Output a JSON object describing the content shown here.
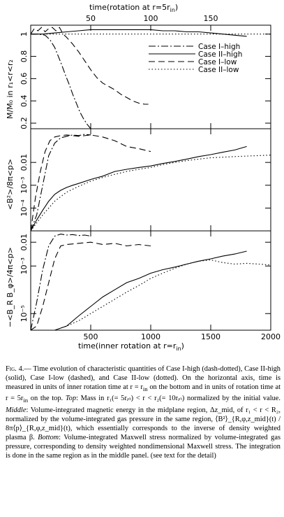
{
  "figure": {
    "top_axis_label": "time(rotation at r=5r",
    "top_axis_label_sub": "in",
    "top_axis_label_end": ")",
    "bottom_axis_label": "time(inner rotation at r=r",
    "bottom_axis_label_sub": "in",
    "bottom_axis_label_end": ")",
    "panel1_ylabel": "M/M₀ in r₁<r<r₂",
    "panel2_ylabel": "<B²>/8π<p>",
    "panel3_ylabel": "−<B_R B_φ>/4π<p>",
    "legend": [
      {
        "label": "Case I–high",
        "dash": "10,3,2,3"
      },
      {
        "label": "Case II–high",
        "dash": ""
      },
      {
        "label": "Case I–low",
        "dash": "9,5"
      },
      {
        "label": "Case II–low",
        "dash": "1.5,3"
      }
    ]
  },
  "chart_data": [
    {
      "type": "line",
      "panel": "top",
      "xlabel": "time(rotation at r=5r_in)",
      "ylabel": "M/M_0 in r_1<r<r_2",
      "xlim": [
        0,
        2000
      ],
      "ylim": [
        0.15,
        1.08
      ],
      "x_ticks": [
        500,
        1000,
        1500
      ],
      "top_ticks": [
        50,
        100,
        150
      ],
      "y_ticks": [
        0.2,
        0.4,
        0.6,
        0.8,
        1
      ],
      "y_tick_labels": [
        "0.2",
        "0.4",
        "0.6",
        "0.8",
        "1"
      ],
      "series": [
        {
          "name": "Case I-high",
          "x": [
            0,
            60,
            120,
            160,
            200,
            230,
            260,
            290,
            320,
            350,
            380,
            410,
            440,
            470,
            500
          ],
          "y": [
            1.0,
            1.0,
            0.99,
            0.95,
            0.88,
            0.8,
            0.72,
            0.63,
            0.55,
            0.46,
            0.38,
            0.3,
            0.24,
            0.19,
            0.15
          ]
        },
        {
          "name": "Case II-high",
          "x": [
            0,
            100,
            200,
            300,
            400,
            500,
            600,
            700,
            800,
            900,
            1000,
            1100,
            1200,
            1300,
            1400,
            1500,
            1600,
            1700,
            1800
          ],
          "y": [
            1.0,
            1.0,
            1.01,
            1.02,
            1.03,
            1.04,
            1.04,
            1.04,
            1.04,
            1.04,
            1.04,
            1.03,
            1.03,
            1.02,
            1.02,
            1.01,
            1.0,
            0.99,
            0.98
          ]
        },
        {
          "name": "Case I-low",
          "x": [
            0,
            30,
            60,
            90,
            120,
            150,
            180,
            210,
            240,
            270,
            300,
            350,
            400,
            450,
            500,
            550,
            600,
            650,
            700,
            750,
            800,
            850,
            900,
            950,
            980
          ],
          "y": [
            1.0,
            1.05,
            1.03,
            1.06,
            1.02,
            1.05,
            1.06,
            1.03,
            1.06,
            1.0,
            0.97,
            0.91,
            0.84,
            0.76,
            0.68,
            0.61,
            0.56,
            0.53,
            0.5,
            0.46,
            0.43,
            0.4,
            0.38,
            0.37,
            0.37
          ]
        },
        {
          "name": "Case II-low",
          "x": [
            0,
            200,
            400,
            600,
            800,
            1000,
            1200,
            1400,
            1600,
            1800,
            2000
          ],
          "y": [
            1.0,
            1.0,
            1.0,
            1.0,
            1.0,
            1.0,
            1.0,
            1.0,
            1.0,
            1.0,
            1.0
          ]
        }
      ]
    },
    {
      "type": "line",
      "panel": "middle",
      "ylabel": "<B^2>/8π<p>",
      "yscale": "log",
      "xlim": [
        0,
        2000
      ],
      "ylim": [
        1e-05,
        0.3
      ],
      "y_ticks": [
        0.0001,
        0.001,
        0.01
      ],
      "y_tick_labels": [
        "10⁻⁴",
        "10⁻³",
        "0.01"
      ],
      "series": [
        {
          "name": "Case I-high",
          "x": [
            0,
            50,
            100,
            150,
            200,
            250,
            300,
            350,
            400,
            450,
            500
          ],
          "y": [
            1e-05,
            5e-05,
            0.001,
            0.02,
            0.07,
            0.12,
            0.14,
            0.16,
            0.15,
            0.17,
            0.16
          ]
        },
        {
          "name": "Case II-high",
          "x": [
            0,
            50,
            100,
            150,
            200,
            250,
            300,
            350,
            400,
            500,
            600,
            700,
            800,
            900,
            1000,
            1100,
            1200,
            1300,
            1400,
            1500,
            1600,
            1700,
            1800
          ],
          "y": [
            1e-05,
            3e-05,
            8e-05,
            0.0002,
            0.0004,
            0.0006,
            0.0008,
            0.001,
            0.0012,
            0.0018,
            0.0025,
            0.004,
            0.005,
            0.006,
            0.007,
            0.009,
            0.011,
            0.014,
            0.018,
            0.022,
            0.028,
            0.035,
            0.05
          ]
        },
        {
          "name": "Case I-low",
          "x": [
            0,
            40,
            80,
            120,
            160,
            200,
            250,
            300,
            400,
            500,
            600,
            700,
            800,
            900,
            1000
          ],
          "y": [
            1e-05,
            0.0003,
            0.004,
            0.03,
            0.09,
            0.13,
            0.15,
            0.16,
            0.14,
            0.16,
            0.13,
            0.09,
            0.05,
            0.04,
            0.03
          ]
        },
        {
          "name": "Case II-low",
          "x": [
            0,
            100,
            200,
            300,
            400,
            500,
            600,
            700,
            800,
            900,
            1000,
            1100,
            1200,
            1300,
            1400,
            1500,
            1600,
            1700,
            1800,
            1900,
            2000
          ],
          "y": [
            1e-05,
            5e-05,
            0.0002,
            0.0005,
            0.0009,
            0.0015,
            0.0022,
            0.003,
            0.004,
            0.005,
            0.006,
            0.008,
            0.01,
            0.012,
            0.014,
            0.016,
            0.017,
            0.018,
            0.019,
            0.02,
            0.021
          ]
        }
      ]
    },
    {
      "type": "line",
      "panel": "bottom",
      "ylabel": "-<B_R B_φ>/4π<p>",
      "xlabel": "time(inner rotation at r=r_in)",
      "yscale": "log",
      "xlim": [
        0,
        2000
      ],
      "ylim": [
        2e-06,
        0.03
      ],
      "x_ticks": [
        500,
        1000,
        1500,
        2000
      ],
      "x_tick_labels": [
        "500",
        "1000",
        "1500",
        "2000"
      ],
      "y_ticks": [
        1e-05,
        0.001,
        0.01
      ],
      "y_tick_labels": [
        "10⁻⁵",
        "10⁻³",
        "0.01"
      ],
      "series": [
        {
          "name": "Case I-high",
          "x": [
            0,
            50,
            100,
            150,
            200,
            250,
            300,
            350,
            400,
            450,
            500
          ],
          "y": [
            2e-06,
            3e-05,
            0.0007,
            0.007,
            0.018,
            0.022,
            0.02,
            0.021,
            0.019,
            0.02,
            0.018
          ]
        },
        {
          "name": "Case II-high",
          "x": [
            0,
            200,
            300,
            400,
            500,
            600,
            700,
            800,
            900,
            1000,
            1100,
            1200,
            1300,
            1400,
            1500,
            1600,
            1700,
            1800
          ],
          "y": [
            2e-06,
            2e-06,
            3e-06,
            8e-06,
            2e-05,
            5e-05,
            0.0001,
            0.0002,
            0.0003,
            0.0005,
            0.0007,
            0.0009,
            0.0012,
            0.0016,
            0.002,
            0.0026,
            0.0032,
            0.0042
          ]
        },
        {
          "name": "Case I-low",
          "x": [
            0,
            50,
            100,
            150,
            200,
            250,
            300,
            400,
            500,
            600,
            700,
            800,
            900,
            1000
          ],
          "y": [
            2e-06,
            3e-06,
            2e-05,
            0.0002,
            0.002,
            0.007,
            0.008,
            0.009,
            0.01,
            0.008,
            0.009,
            0.007,
            0.008,
            0.007
          ]
        },
        {
          "name": "Case II-low",
          "x": [
            0,
            200,
            300,
            400,
            500,
            600,
            700,
            800,
            900,
            1000,
            1100,
            1200,
            1300,
            1400,
            1500,
            1600,
            1700,
            1800,
            1900,
            2000
          ],
          "y": [
            2e-06,
            2e-06,
            3e-06,
            5e-06,
            1e-05,
            2e-05,
            4e-05,
            8e-05,
            0.00015,
            0.0003,
            0.0005,
            0.0008,
            0.0012,
            0.0016,
            0.0018,
            0.0014,
            0.0012,
            0.0013,
            0.0012,
            0.0011
          ]
        }
      ]
    }
  ],
  "caption": {
    "label": "Fig. 4.",
    "p1": "— Time evolution of characteristic quantities of Case I-high (dash-dotted), Case II-high (solid), Case I-low (dashed), and Case II-low (dotted). On the horizontal axis, time is measured in units of inner rotation time at r = r",
    "p1_sub": "in",
    "p1b": " on the bottom and in units of rotation time at r = 5r",
    "p1b_sub": "in",
    "p1c": " on the top. ",
    "top_title": "Top",
    "p2": ": Mass in r₁(= 5rᵢₙ) < r < r₂(= 10rᵢₙ) normalized by the initial value. ",
    "middle_title": "Middle",
    "p3": ": Volume-integrated magnetic energy in the midplane region, Δz_mid, of r₁ < r < R₂, normalized by the volume-integrated gas pressure in the same region, ⟨B²⟩_{R,φ,z_mid}(t) / 8π⟨p⟩_{R,φ,z_mid}(t), which essentially corresponds to the inverse of density weighted plasma β. ",
    "bottom_title": "Bottom",
    "p4": ": Volume-integrated Maxwell stress normalized by volume-integrated gas pressure, corresponding to density weighted nondimensional Maxwell stress. The integration is done in the same region as in the middle panel. (see text for the detail)"
  }
}
